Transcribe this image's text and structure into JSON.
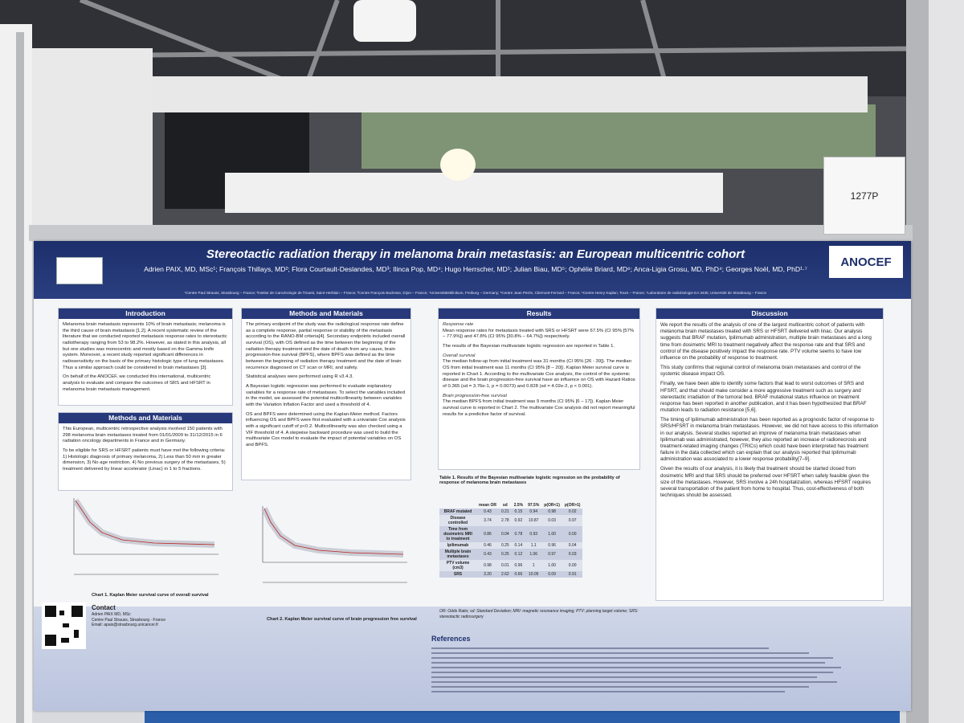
{
  "booth_sign": "1277P",
  "poster": {
    "title": "Stereotactic radiation therapy in melanoma brain metastasis: an European multicentric cohort",
    "authors": "Adrien PAIX, MD, MSc¹; François Thillays, MD²; Flora Courtault-Deslandes, MD³; Ilinca Pop, MD⁴; Hugo Herrscher, MD¹; Julian Biau, MD⁵; Ophélie Briard, MD⁶; Anca-Ligia Grosu, MD, PhD⁴; Georges Noël, MD, PhD¹·⁷",
    "affiliations": "¹Centre Paul Strauss, Strasbourg – France; ²Institut de Cancérologie de l'Ouest, Saint-Herblain – France; ³Centre François Baclesse, Dijon – France; ⁴Universitätsklinikum, Freiburg – Germany; ⁵Centre Jean Perrin, Clermont-Ferrand – France; ⁶Centre Henry Kaplan, Tours – France; ⁷Laboratoire de radiobiologie EA 3430, Université de Strasbourg – France",
    "logo": "ANOCEF",
    "introduction": {
      "heading": "Introduction",
      "paragraphs": [
        "Melanoma brain metastasis represents 10% of brain metastasis; melanoma is the third cause of brain metastasis [1,2]. A recent systematic review of the literature that we conducted reported metastasis response rates to stereotactic radiotherapy ranging from 53 to 98.2%. However, as stated in this analysis, all but one studies was monocentric and mostly based on the Gamma knife system. Moreover, a recent study reported significant differences in radiosensitivity on the basis of the primary histologic type of lung metastases. Thus a similar approach could be considered in brain metastases [3].",
        "On behalf of the ANOCEF, we conducted this international, multicentric analysis to evaluate and compare the outcomes of SRS and HFSRT in melanoma brain metastasis management."
      ]
    },
    "methods_left": {
      "heading": "Methods and Materials",
      "paragraphs": [
        "This European, multicentric retrospective analysis involved 150 patients with 298 melanoma brain metastases treated from 01/01/2009 to 31/12/2015 in 6 radiation oncology departments in France and in Germany.",
        "To be eligible for SRS or HFSRT patients must have met the following criteria: 1) Histologic diagnosis of primary melanoma, 2) Less than 50 mm in greater dimension, 3) No age restriction, 4) No previous surgery of the metastases, 5) treatment delivered by linear accelerator (Linac) in 1 to 5 fractions."
      ]
    },
    "methods": {
      "heading": "Methods and Materials",
      "paragraphs": [
        "The primary endpoint of the study was the radiological response rate define as a complete response, partial response or stability of the metastasis according to the RANO-BM criteria[4]. Secondary endpoints included overall survival (OS), with OS defined as the time between the beginning of the radiation therapy treatment and the date of death from any cause, brain progression-free survival (BPFS), where BPFS was defined as the time between the beginning of radiation therapy treatment and the date of brain recurrence diagnosed on CT scan or MRI, and safety.",
        "Statistical analyses were performed using R v3.4.3.",
        "A Bayesian logistic regression was performed to evaluate explanatory variables for a response rate of metastases. To select the variables included in the model, we assessed the potential multicollinearity between variables with the Variation Inflation Factor and used a threshold of 4.",
        "OS and BPFS were determined using the Kaplan-Meier method. Factors influencing OS and BPFS were first evaluated with a univariate Cox analysis with a significant cutoff of p<0.2. Multicollinearity was also checked using a VIF threshold of 4. A stepwise backward procedure was used to build the multivariate Cox model to evaluate the impact of potential variables on OS and BPFS."
      ]
    },
    "results": {
      "heading": "Results",
      "sections": [
        {
          "subheading": "Response rate",
          "paragraphs": [
            "Mean response rates for metastasis treated with SRS or HFSRT were 67.5% (CI 95% [57% – 77.9%]) and 47.8% (CI 95% [30.8% – 64.7%]) respectively.",
            "The results of the Bayesian multivariate logistic regression are reported in Table 1."
          ]
        },
        {
          "subheading": "Overall survival",
          "paragraphs": [
            "The median follow-up from initial treatment was 31 months (CI 95% [26 - 39]). The median OS from initial treatment was 11 months (CI 95% [8 – 20]). Kaplan Meier survival curve is reported in Chart 1. According to the multivariate Cox analysis, the control of the systemic disease and the brain progression-free survival have an influence on OS with Hazard Ratios of 0.365 (sd = 3.76e-1, p = 0.0073) and 0.828 (sd = 4.02e-2, p < 0.001)."
          ]
        },
        {
          "subheading": "Brain progression-free survival",
          "paragraphs": [
            "The median BPFS from initial treatment was 9 months (CI 95% [6 – 17]). Kaplan Meier survival curve is reported in Chart 2. The multivariate Cox analysis did not report meaningful results for a predictive factor of survival."
          ]
        }
      ]
    },
    "table": {
      "caption": "Table 1. Results of the Bayesian multivariate logistic regression on the probability of response of melanoma brain metastases",
      "columns": [
        "mean OR",
        "sd",
        "2.5%",
        "97.5%",
        "p(OR<1)",
        "p(OR>1)"
      ],
      "rows": [
        [
          "BRAF mutated",
          "0.43",
          "0.21",
          "0.15",
          "0.94",
          "0.98",
          "0.02"
        ],
        [
          "Disease controlled",
          "3.74",
          "2.78",
          "0.92",
          "10.87",
          "0.03",
          "0.97"
        ],
        [
          "Time from dosimetric MRI to treatment",
          "0.86",
          "0.04",
          "0.78",
          "0.93",
          "1.00",
          "0.00"
        ],
        [
          "Ipilimumab",
          "0.46",
          "0.25",
          "0.14",
          "1.1",
          "0.96",
          "0.04"
        ],
        [
          "Multiple brain metastases",
          "0.43",
          "0.25",
          "0.12",
          "1.06",
          "0.97",
          "0.03"
        ],
        [
          "PTV volume (cm3)",
          "0.98",
          "0.01",
          "0.96",
          "1",
          "1.00",
          "0.00"
        ],
        [
          "SRS",
          "3.20",
          "2.62",
          "0.66",
          "10.05",
          "0.09",
          "0.91"
        ]
      ],
      "note": "OR: Odds Ratio; sd: Standard Deviation; MRI: magnetic resonance imaging; PTV: planning target volume; SRS: stereotactic radiosurgery"
    },
    "discussion": {
      "heading": "Discussion",
      "paragraphs": [
        "We report the results of the analysis of one of the largest multicentric cohort of patients with melanoma brain metastases treated with SRS or HFSRT delivered with linac. Our analysis suggests that BRAF mutation, Ipilimumab administration, multiple brain metastases and a long time from dosimetric MRI to treatment negatively affect the response rate and that SRS and control of the disease positively impact the response rate. PTV volume seems to have low influence on the probability of response to treatment.",
        "This study confirms that regional control of melanoma brain metastases and control of the systemic disease impact OS.",
        "Finally, we have been able to identify some factors that lead to worst outcomes of SRS and HFSRT, and that should make consider a more aggressive treatment such as surgery and stereotactic irradiation of the tumoral bed. BRAF mutational status influence on treatment response has been reported in another publication, and it has been hypothesized that BRAF mutation leads to radiation resistance [5,6].",
        "The timing of Ipilimumab administration has been reported as a prognostic factor of response to SRS/HFSRT in melanoma brain metastases. However, we did not have access to this information in our analysis. Several studies reported an improve of melanoma brain metastases when Ipilimumab was administrated, however, they also reported an increase of radionecrosis and treatment-related imaging changes (TRICs) which could have been interpreted has treatment failure in the data collected which can explain that our analysis reported that Ipilimumab administration was associated to a lower response probability[7–9].",
        "Given the results of our analysis, it is likely that treatment should be started closed from dosimetric MRI and that SRS should be preferred over HFSRT when safely feasible given the size of the metastases. However, SRS involve a 24h hospitalization, whereas HFSRT requires several transportation of the patient from home to hospital. Thus, cost-effectiveness of both techniques should be assessed."
      ]
    },
    "charts": [
      {
        "caption": "Chart 1. Kaplan Meier survival curve of overall survival"
      },
      {
        "caption": "Chart 2. Kaplan Meier survival curve of brain progression free survival"
      }
    ],
    "contact": {
      "heading": "Contact",
      "lines": [
        "Adrien PAIX MD, MSc",
        "Centre Paul Strauss, Strasbourg - France",
        "Email: apaix@strasbourg.unicancer.fr"
      ]
    },
    "references": {
      "heading": "References"
    }
  }
}
